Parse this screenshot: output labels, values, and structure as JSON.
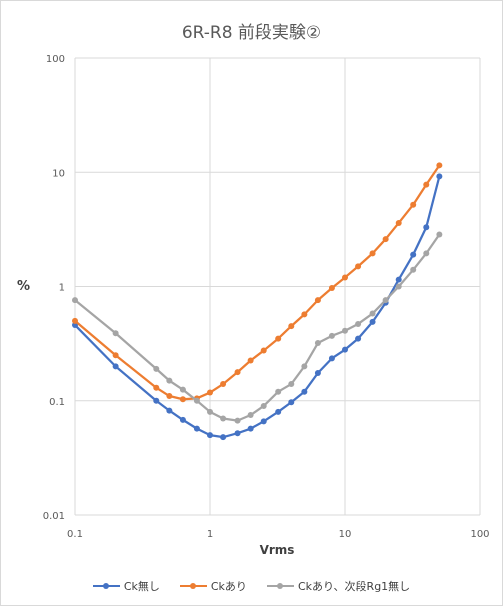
{
  "chart_data": {
    "type": "line",
    "title": "6R-R8 前段実験②",
    "xlabel": "Vrms",
    "ylabel": "%",
    "xscale": "log",
    "yscale": "log",
    "xlim": [
      0.1,
      100
    ],
    "ylim": [
      0.01,
      100
    ],
    "x_ticks": [
      "0.1",
      "1",
      "10",
      "100"
    ],
    "y_ticks": [
      "0.01",
      "0.1",
      "1",
      "10",
      "100"
    ],
    "grid": "major",
    "legend": "bottom",
    "series": [
      {
        "name": "Ck無し",
        "color": "#4472c4",
        "x": [
          0.1,
          0.2,
          0.4,
          0.5,
          0.63,
          0.8,
          1.0,
          1.25,
          1.6,
          2.0,
          2.5,
          3.2,
          4.0,
          5.0,
          6.3,
          8.0,
          10,
          12.5,
          16,
          20,
          25,
          32,
          40,
          50
        ],
        "y": [
          0.46,
          0.2,
          0.1,
          0.082,
          0.068,
          0.057,
          0.05,
          0.048,
          0.052,
          0.057,
          0.066,
          0.08,
          0.097,
          0.12,
          0.175,
          0.235,
          0.28,
          0.35,
          0.49,
          0.72,
          1.15,
          1.9,
          3.3,
          9.2
        ]
      },
      {
        "name": "Ckあり",
        "color": "#ed7d31",
        "x": [
          0.1,
          0.2,
          0.4,
          0.5,
          0.63,
          0.8,
          1.0,
          1.25,
          1.6,
          2.0,
          2.5,
          3.2,
          4.0,
          5.0,
          6.3,
          8.0,
          10,
          12.5,
          16,
          20,
          25,
          32,
          40,
          50
        ],
        "y": [
          0.5,
          0.25,
          0.13,
          0.11,
          0.103,
          0.105,
          0.118,
          0.14,
          0.178,
          0.225,
          0.275,
          0.35,
          0.45,
          0.57,
          0.76,
          0.97,
          1.2,
          1.5,
          1.95,
          2.6,
          3.6,
          5.2,
          7.8,
          11.5
        ]
      },
      {
        "name": "Ckあり、次段Rg1無し",
        "color": "#a5a5a5",
        "x": [
          0.1,
          0.2,
          0.4,
          0.5,
          0.63,
          0.8,
          1.0,
          1.25,
          1.6,
          2.0,
          2.5,
          3.2,
          4.0,
          5.0,
          6.3,
          8.0,
          10,
          12.5,
          16,
          20,
          25,
          32,
          40,
          50
        ],
        "y": [
          0.76,
          0.39,
          0.19,
          0.15,
          0.125,
          0.1,
          0.08,
          0.07,
          0.067,
          0.075,
          0.09,
          0.12,
          0.14,
          0.2,
          0.32,
          0.37,
          0.41,
          0.47,
          0.58,
          0.76,
          1.0,
          1.4,
          1.95,
          2.85
        ]
      }
    ]
  }
}
